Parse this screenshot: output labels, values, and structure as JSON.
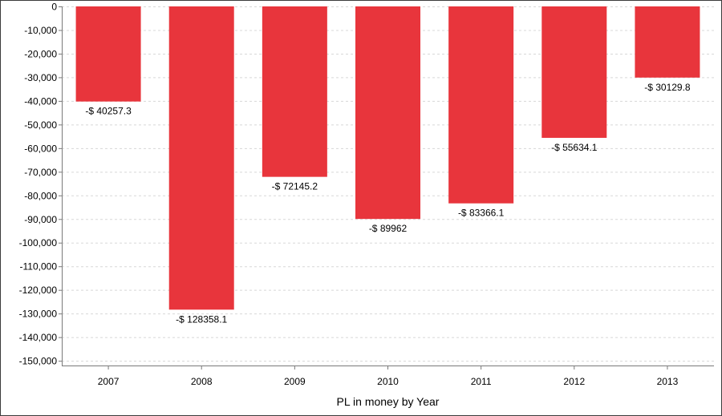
{
  "chart_data": {
    "type": "bar",
    "title": "",
    "xlabel": "PL in money by Year",
    "ylabel": "",
    "categories": [
      "2007",
      "2008",
      "2009",
      "2010",
      "2011",
      "2012",
      "2013"
    ],
    "values": [
      -40257.3,
      -128358.1,
      -72145.2,
      -89962,
      -83366.1,
      -55634.1,
      -30129.8
    ],
    "data_labels": [
      "-$ 40257.3",
      "-$ 128358.1",
      "-$ 72145.2",
      "-$ 89962",
      "-$ 83366.1",
      "-$ 55634.1",
      "-$ 30129.8"
    ],
    "yticks": [
      0,
      -10000,
      -20000,
      -30000,
      -40000,
      -50000,
      -60000,
      -70000,
      -80000,
      -90000,
      -100000,
      -110000,
      -120000,
      -130000,
      -140000,
      -150000
    ],
    "ytick_labels": [
      "0",
      "-10,000",
      "-20,000",
      "-30,000",
      "-40,000",
      "-50,000",
      "-60,000",
      "-70,000",
      "-80,000",
      "-90,000",
      "-100,000",
      "-110,000",
      "-120,000",
      "-130,000",
      "-140,000",
      "-150,000"
    ],
    "ylim": [
      -152000,
      0
    ],
    "grid": true,
    "legend": "none",
    "bar_color": "#e8353c"
  }
}
